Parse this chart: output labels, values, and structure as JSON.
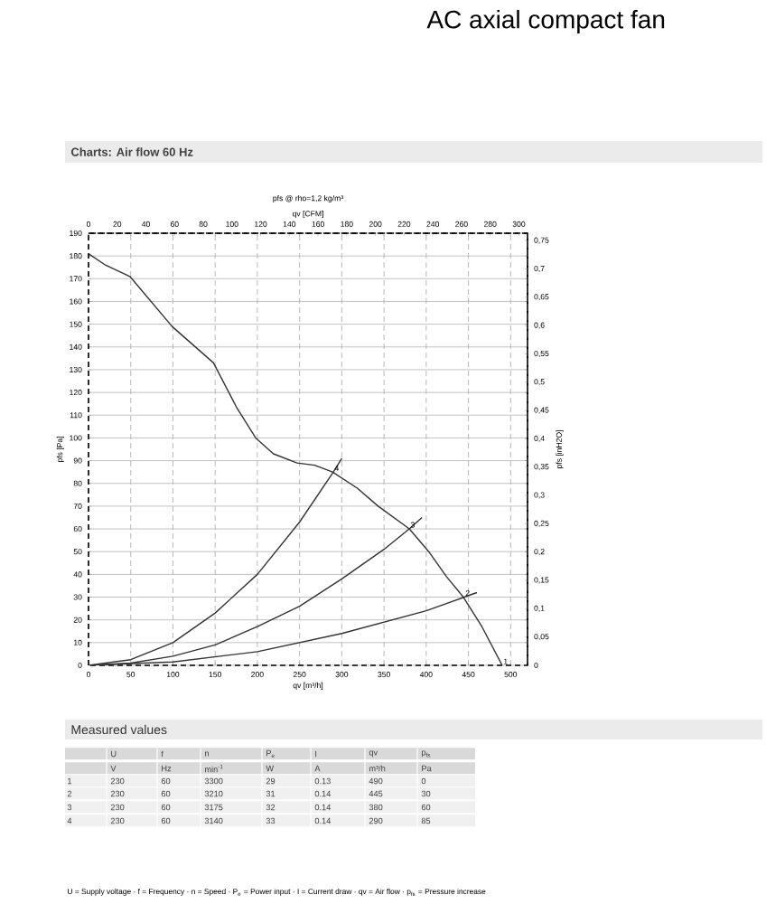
{
  "chart_data": {
    "type": "line",
    "title": "AC axial compact fan",
    "subtitle": "Charts: Air flow 60 Hz",
    "xlabel": "qv [m³/h]",
    "ylabel": "pfs [Pa]",
    "x2label": "qv [CFM]",
    "y2label": "pfs [inH2O]",
    "xlim": [
      0,
      520
    ],
    "xticks": [
      0,
      50,
      100,
      150,
      200,
      250,
      300,
      350,
      400,
      450,
      500
    ],
    "ylim": [
      0,
      190
    ],
    "yticks": [
      0,
      10,
      20,
      30,
      40,
      50,
      60,
      70,
      80,
      90,
      100,
      110,
      120,
      130,
      140,
      150,
      160,
      170,
      180,
      190
    ],
    "x2lim": [
      0,
      306
    ],
    "x2ticks": [
      0,
      20,
      40,
      60,
      80,
      100,
      120,
      140,
      160,
      180,
      200,
      220,
      240,
      260,
      280,
      300
    ],
    "y2lim": [
      0,
      0.763
    ],
    "y2ticks": [
      {
        "value": 0,
        "label": "0"
      },
      {
        "value": 0.05,
        "label": "0,05"
      },
      {
        "value": 0.1,
        "label": "0,1"
      },
      {
        "value": 0.15,
        "label": "0,15"
      },
      {
        "value": 0.2,
        "label": "0,2"
      },
      {
        "value": 0.25,
        "label": "0,25"
      },
      {
        "value": 0.3,
        "label": "0,3"
      },
      {
        "value": 0.35,
        "label": "0,35"
      },
      {
        "value": 0.4,
        "label": "0,4"
      },
      {
        "value": 0.45,
        "label": "0,45"
      },
      {
        "value": 0.5,
        "label": "0,5"
      },
      {
        "value": 0.55,
        "label": "0,55"
      },
      {
        "value": 0.6,
        "label": "0,6"
      },
      {
        "value": 0.65,
        "label": "0,65"
      },
      {
        "value": 0.7,
        "label": "0,7"
      },
      {
        "value": 0.75,
        "label": "0,75"
      }
    ],
    "grid": true,
    "marker": "none",
    "line_style": "solid",
    "series": [
      {
        "color": "#333333",
        "x": [
          0,
          20,
          49,
          99,
          148,
          176,
          198,
          219,
          247,
          268,
          289,
          318,
          343,
          380,
          403,
          424,
          444,
          466,
          490
        ],
        "values": [
          181,
          176,
          171,
          149,
          133,
          113,
          100,
          93,
          89,
          88,
          85,
          78,
          70,
          60,
          50,
          39,
          30,
          17,
          0
        ]
      },
      {
        "color": "#333333",
        "x": [
          0,
          50,
          100,
          150,
          200,
          250,
          290,
          300
        ],
        "values": [
          0,
          2.5,
          10,
          23,
          40,
          63,
          85,
          91
        ]
      },
      {
        "color": "#333333",
        "x": [
          0,
          50,
          100,
          150,
          200,
          250,
          300,
          350,
          380,
          395
        ],
        "values": [
          0,
          1,
          4,
          9,
          17,
          26,
          38,
          51,
          60,
          65
        ]
      },
      {
        "color": "#333333",
        "x": [
          0,
          100,
          200,
          300,
          400,
          445,
          460
        ],
        "values": [
          0,
          1.5,
          6,
          14,
          24,
          30,
          32
        ]
      }
    ],
    "annotations": [
      {
        "text": "1",
        "x": 490,
        "y": 0
      },
      {
        "text": "2",
        "x": 445,
        "y": 30
      },
      {
        "text": "3",
        "x": 380,
        "y": 60
      },
      {
        "text": "4",
        "x": 290,
        "y": 85
      },
      "pfs @ rho=1,2 kg/m³",
      "Measured values",
      "U",
      "f",
      "n",
      "P$_{e}$",
      "I",
      "qv",
      "p$_{fs}$",
      "V",
      "Hz",
      "min$^{-1}$",
      "W",
      "A",
      "m³/h",
      "Pa",
      "1",
      "230",
      "60",
      "3300",
      "29",
      "0.13",
      "490",
      "0",
      "2",
      "230",
      "60",
      "3210",
      "31",
      "0.14",
      "445",
      "30",
      "3",
      "230",
      "60",
      "3175",
      "32",
      "0.14",
      "380",
      "60",
      "4",
      "230",
      "60",
      "3140",
      "33",
      "0.14",
      "290",
      "85",
      "U = Supply voltage · f = Frequency · n = Speed · P$_{e}$ = Power input · I = Current draw · qv = Air flow · p$_{fs}$ = Pressure increase"
    ]
  }
}
